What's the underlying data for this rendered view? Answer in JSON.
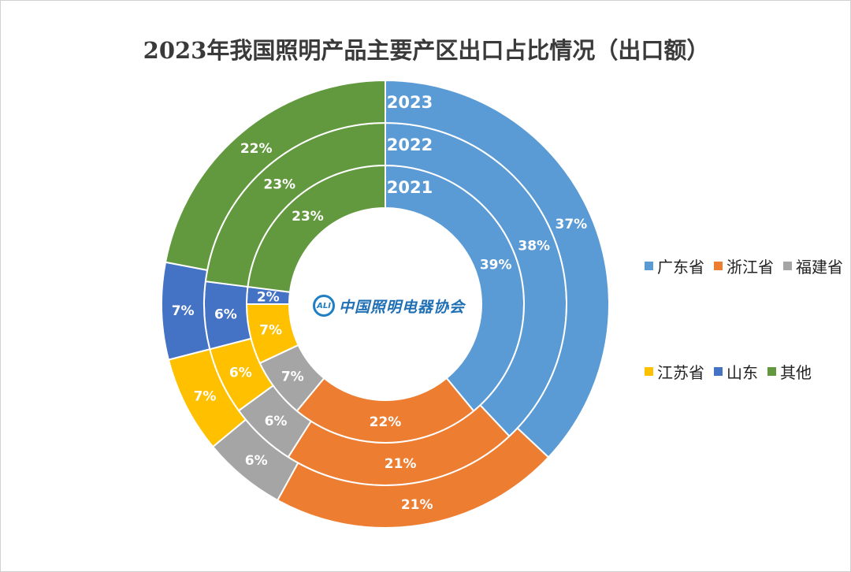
{
  "chart_data": {
    "type": "pie",
    "subtype": "multi-level-donut",
    "title": "2023年我国照明产品主要产区出口占比情况（出口额）",
    "categories": [
      "广东省",
      "浙江省",
      "福建省",
      "江苏省",
      "山东",
      "其他"
    ],
    "colors": [
      "#5b9bd5",
      "#ed7d31",
      "#a5a5a5",
      "#ffc000",
      "#4472c4",
      "#62993e"
    ],
    "series": [
      {
        "name": "2021",
        "values": [
          39,
          22,
          7,
          7,
          2,
          23
        ],
        "labels": [
          "39%",
          "22%",
          "7%",
          "7%",
          "2%",
          "23%"
        ]
      },
      {
        "name": "2022",
        "values": [
          38,
          21,
          6,
          6,
          6,
          23
        ],
        "labels": [
          "38%",
          "21%",
          "6%",
          "6%",
          "6%",
          "23%"
        ]
      },
      {
        "name": "2023",
        "values": [
          37,
          21,
          6,
          7,
          7,
          22
        ],
        "labels": [
          "37%",
          "21%",
          "6%",
          "7%",
          "7%",
          "22%"
        ]
      }
    ],
    "legend_position": "right"
  },
  "logo": {
    "mark": "ALI",
    "text": "中国照明电器协会"
  }
}
